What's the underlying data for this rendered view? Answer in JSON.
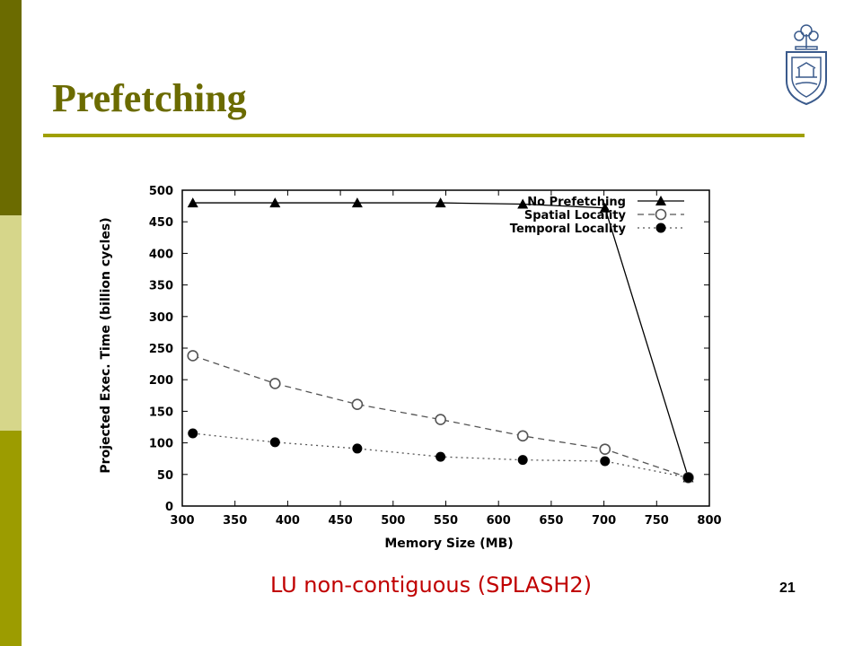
{
  "slide": {
    "title": "Prefetching",
    "caption": "LU non-contiguous (SPLASH2)",
    "page_number": "21",
    "logo_icon": "university-crest-icon",
    "colors": {
      "sidebar_dark": "#6b6b00",
      "sidebar_light": "#d6d68a",
      "sidebar_mid": "#9c9c00",
      "title": "#6b6b00",
      "rule": "#a0a000",
      "caption": "#c00000"
    }
  },
  "chart_data": {
    "type": "line",
    "title": "",
    "xlabel": "Memory Size (MB)",
    "ylabel": "Projected Exec. Time (billion cycles)",
    "xlim": [
      300,
      800
    ],
    "ylim": [
      0,
      500
    ],
    "xticks": [
      300,
      350,
      400,
      450,
      500,
      550,
      600,
      650,
      700,
      750,
      800
    ],
    "yticks": [
      0,
      50,
      100,
      150,
      200,
      250,
      300,
      350,
      400,
      450,
      500
    ],
    "legend_position": "top-right",
    "grid": false,
    "series": [
      {
        "name": "No Prefetching",
        "style": "solid",
        "marker": "triangle",
        "x": [
          310,
          388,
          466,
          545,
          623,
          701,
          780
        ],
        "y": [
          480,
          480,
          480,
          480,
          478,
          472,
          45
        ]
      },
      {
        "name": "Spatial Locality",
        "style": "dashed",
        "marker": "open-circle",
        "x": [
          310,
          388,
          466,
          545,
          623,
          701,
          780
        ],
        "y": [
          238,
          194,
          161,
          137,
          111,
          90,
          45
        ]
      },
      {
        "name": "Temporal Locality",
        "style": "dotted",
        "marker": "filled-circle",
        "x": [
          310,
          388,
          466,
          545,
          623,
          701,
          780
        ],
        "y": [
          115,
          101,
          91,
          78,
          73,
          71,
          45
        ]
      }
    ]
  }
}
